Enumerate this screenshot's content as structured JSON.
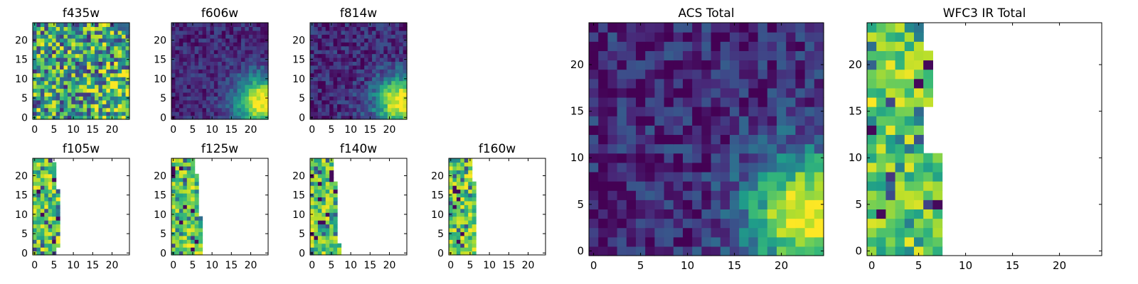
{
  "figure": {
    "background": "#ffffff"
  },
  "colormap": {
    "name": "viridis",
    "stops": [
      "#440154",
      "#482878",
      "#3e4989",
      "#31688e",
      "#26828e",
      "#1f9e89",
      "#35b779",
      "#6ece58",
      "#b5de2b",
      "#fde725"
    ]
  },
  "chart_data": [
    {
      "type": "heatmap",
      "title": "f435w",
      "grid_size": [
        25,
        25
      ],
      "xlim": [
        0,
        25
      ],
      "ylim": [
        0,
        25
      ],
      "xticks": [
        0,
        5,
        10,
        15,
        20
      ],
      "yticks": [
        0,
        5,
        10,
        15,
        20
      ],
      "coverage": "full",
      "pattern": "noise",
      "brightness_center": [
        23,
        5
      ],
      "noise_level": 0.9
    },
    {
      "type": "heatmap",
      "title": "f606w",
      "grid_size": [
        25,
        25
      ],
      "xlim": [
        0,
        25
      ],
      "ylim": [
        0,
        25
      ],
      "xticks": [
        0,
        5,
        10,
        15,
        20
      ],
      "yticks": [
        0,
        5,
        10,
        15,
        20
      ],
      "coverage": "full",
      "pattern": "source",
      "brightness_center": [
        23,
        4
      ],
      "noise_level": 0.25
    },
    {
      "type": "heatmap",
      "title": "f814w",
      "grid_size": [
        25,
        25
      ],
      "xlim": [
        0,
        25
      ],
      "ylim": [
        0,
        25
      ],
      "xticks": [
        0,
        5,
        10,
        15,
        20
      ],
      "yticks": [
        0,
        5,
        10,
        15,
        20
      ],
      "coverage": "full",
      "pattern": "source",
      "brightness_center": [
        23,
        4
      ],
      "noise_level": 0.3
    },
    {
      "type": "heatmap",
      "title": "f105w",
      "grid_size": [
        25,
        25
      ],
      "xlim": [
        0,
        25
      ],
      "ylim": [
        0,
        25
      ],
      "xticks": [
        0,
        5,
        10,
        15,
        20
      ],
      "yticks": [
        0,
        5,
        10,
        15,
        20
      ],
      "coverage": "partial",
      "coverage_max_x": [
        5,
        5,
        6,
        6,
        6,
        6,
        6,
        6,
        6,
        6,
        6,
        6,
        6,
        6,
        6,
        6,
        6,
        5,
        5,
        5,
        5,
        5,
        5,
        5,
        4
      ],
      "pattern": "partial"
    },
    {
      "type": "heatmap",
      "title": "f125w",
      "grid_size": [
        25,
        25
      ],
      "xlim": [
        0,
        25
      ],
      "ylim": [
        0,
        25
      ],
      "xticks": [
        0,
        5,
        10,
        15,
        20
      ],
      "yticks": [
        0,
        5,
        10,
        15,
        20
      ],
      "coverage": "partial",
      "coverage_max_x": [
        7,
        7,
        7,
        7,
        7,
        7,
        7,
        7,
        7,
        7,
        6,
        6,
        6,
        6,
        6,
        6,
        6,
        6,
        6,
        6,
        6,
        5,
        5,
        5,
        5
      ],
      "pattern": "partial"
    },
    {
      "type": "heatmap",
      "title": "f140w",
      "grid_size": [
        25,
        25
      ],
      "xlim": [
        0,
        25
      ],
      "ylim": [
        0,
        25
      ],
      "xticks": [
        0,
        5,
        10,
        15,
        20
      ],
      "yticks": [
        0,
        5,
        10,
        15,
        20
      ],
      "coverage": "partial",
      "coverage_max_x": [
        7,
        7,
        7,
        6,
        6,
        6,
        6,
        6,
        6,
        6,
        6,
        6,
        6,
        6,
        6,
        6,
        6,
        6,
        6,
        5,
        5,
        5,
        5,
        5,
        5
      ],
      "pattern": "partial"
    },
    {
      "type": "heatmap",
      "title": "f160w",
      "grid_size": [
        25,
        25
      ],
      "xlim": [
        0,
        25
      ],
      "ylim": [
        0,
        25
      ],
      "xticks": [
        0,
        5,
        10,
        15,
        20
      ],
      "yticks": [
        0,
        5,
        10,
        15,
        20
      ],
      "coverage": "partial",
      "coverage_max_x": [
        6,
        6,
        6,
        6,
        6,
        6,
        6,
        6,
        6,
        6,
        6,
        6,
        6,
        6,
        6,
        6,
        6,
        6,
        6,
        5,
        5,
        5,
        5,
        5,
        5
      ],
      "pattern": "partial"
    },
    {
      "type": "heatmap",
      "title": "ACS Total",
      "grid_size": [
        25,
        25
      ],
      "xlim": [
        0,
        25
      ],
      "ylim": [
        0,
        25
      ],
      "xticks": [
        0,
        5,
        10,
        15,
        20
      ],
      "yticks": [
        0,
        5,
        10,
        15,
        20
      ],
      "coverage": "full",
      "pattern": "source",
      "brightness_center": [
        23,
        4
      ],
      "noise_level": 0.35
    },
    {
      "type": "heatmap",
      "title": "WFC3 IR Total",
      "grid_size": [
        25,
        25
      ],
      "xlim": [
        0,
        25
      ],
      "ylim": [
        0,
        25
      ],
      "xticks": [
        0,
        5,
        10,
        15,
        20
      ],
      "yticks": [
        0,
        5,
        10,
        15,
        20
      ],
      "coverage": "partial",
      "coverage_max_x": [
        7,
        7,
        7,
        7,
        7,
        7,
        7,
        7,
        7,
        7,
        7,
        5,
        5,
        5,
        5,
        5,
        6,
        6,
        6,
        6,
        6,
        6,
        5,
        5,
        5
      ],
      "pattern": "partial"
    }
  ]
}
